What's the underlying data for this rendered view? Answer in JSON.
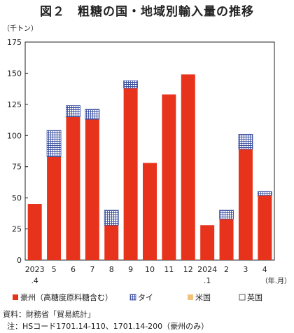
{
  "chart_data": {
    "type": "bar",
    "stacked": true,
    "title": "図２　粗糖の国・地域別輸入量の推移",
    "ylabel": "（千トン）",
    "xlabel": "（年.月）",
    "ylim": [
      0,
      175
    ],
    "yticks": [
      0,
      25,
      50,
      75,
      100,
      125,
      150,
      175
    ],
    "grid": false,
    "legend_position": "bottom",
    "categories": [
      "2023.4",
      "5",
      "6",
      "7",
      "8",
      "9",
      "10",
      "11",
      "12",
      "2024.1",
      "2",
      "3",
      "4"
    ],
    "category_labels": [
      {
        "top": "2023",
        "bottom": ".4"
      },
      {
        "top": "5",
        "bottom": ""
      },
      {
        "top": "6",
        "bottom": ""
      },
      {
        "top": "7",
        "bottom": ""
      },
      {
        "top": "8",
        "bottom": ""
      },
      {
        "top": "9",
        "bottom": ""
      },
      {
        "top": "10",
        "bottom": ""
      },
      {
        "top": "11",
        "bottom": ""
      },
      {
        "top": "12",
        "bottom": ""
      },
      {
        "top": "2024",
        "bottom": ".1"
      },
      {
        "top": "2",
        "bottom": ""
      },
      {
        "top": "3",
        "bottom": ""
      },
      {
        "top": "4",
        "bottom": ""
      }
    ],
    "series": [
      {
        "name": "豪州（高糖度原料糖含む）",
        "color": "#e8331c",
        "pattern": "solid",
        "values": [
          45,
          83,
          115,
          113,
          28,
          138,
          78,
          133,
          149,
          28,
          33,
          89,
          52
        ]
      },
      {
        "name": "タイ",
        "color": "#3a4fa0",
        "pattern": "grid",
        "values": [
          0,
          21,
          9,
          8,
          12,
          6,
          0,
          0,
          0,
          0,
          7,
          12,
          3
        ]
      },
      {
        "name": "米国",
        "color": "#f3c27a",
        "pattern": "solid",
        "values": [
          0,
          0,
          0,
          0,
          0,
          0,
          0,
          0,
          0,
          0,
          0,
          0,
          0
        ]
      },
      {
        "name": "英国",
        "color": "#ffffff",
        "pattern": "outline",
        "values": [
          0,
          0,
          0,
          0,
          0,
          0,
          0,
          0,
          0,
          0,
          0,
          0,
          0
        ]
      }
    ]
  },
  "source": "資料：財務省「貿易統計」",
  "note": "注：HSコード1701.14-110、1701.14-200（豪州のみ）"
}
